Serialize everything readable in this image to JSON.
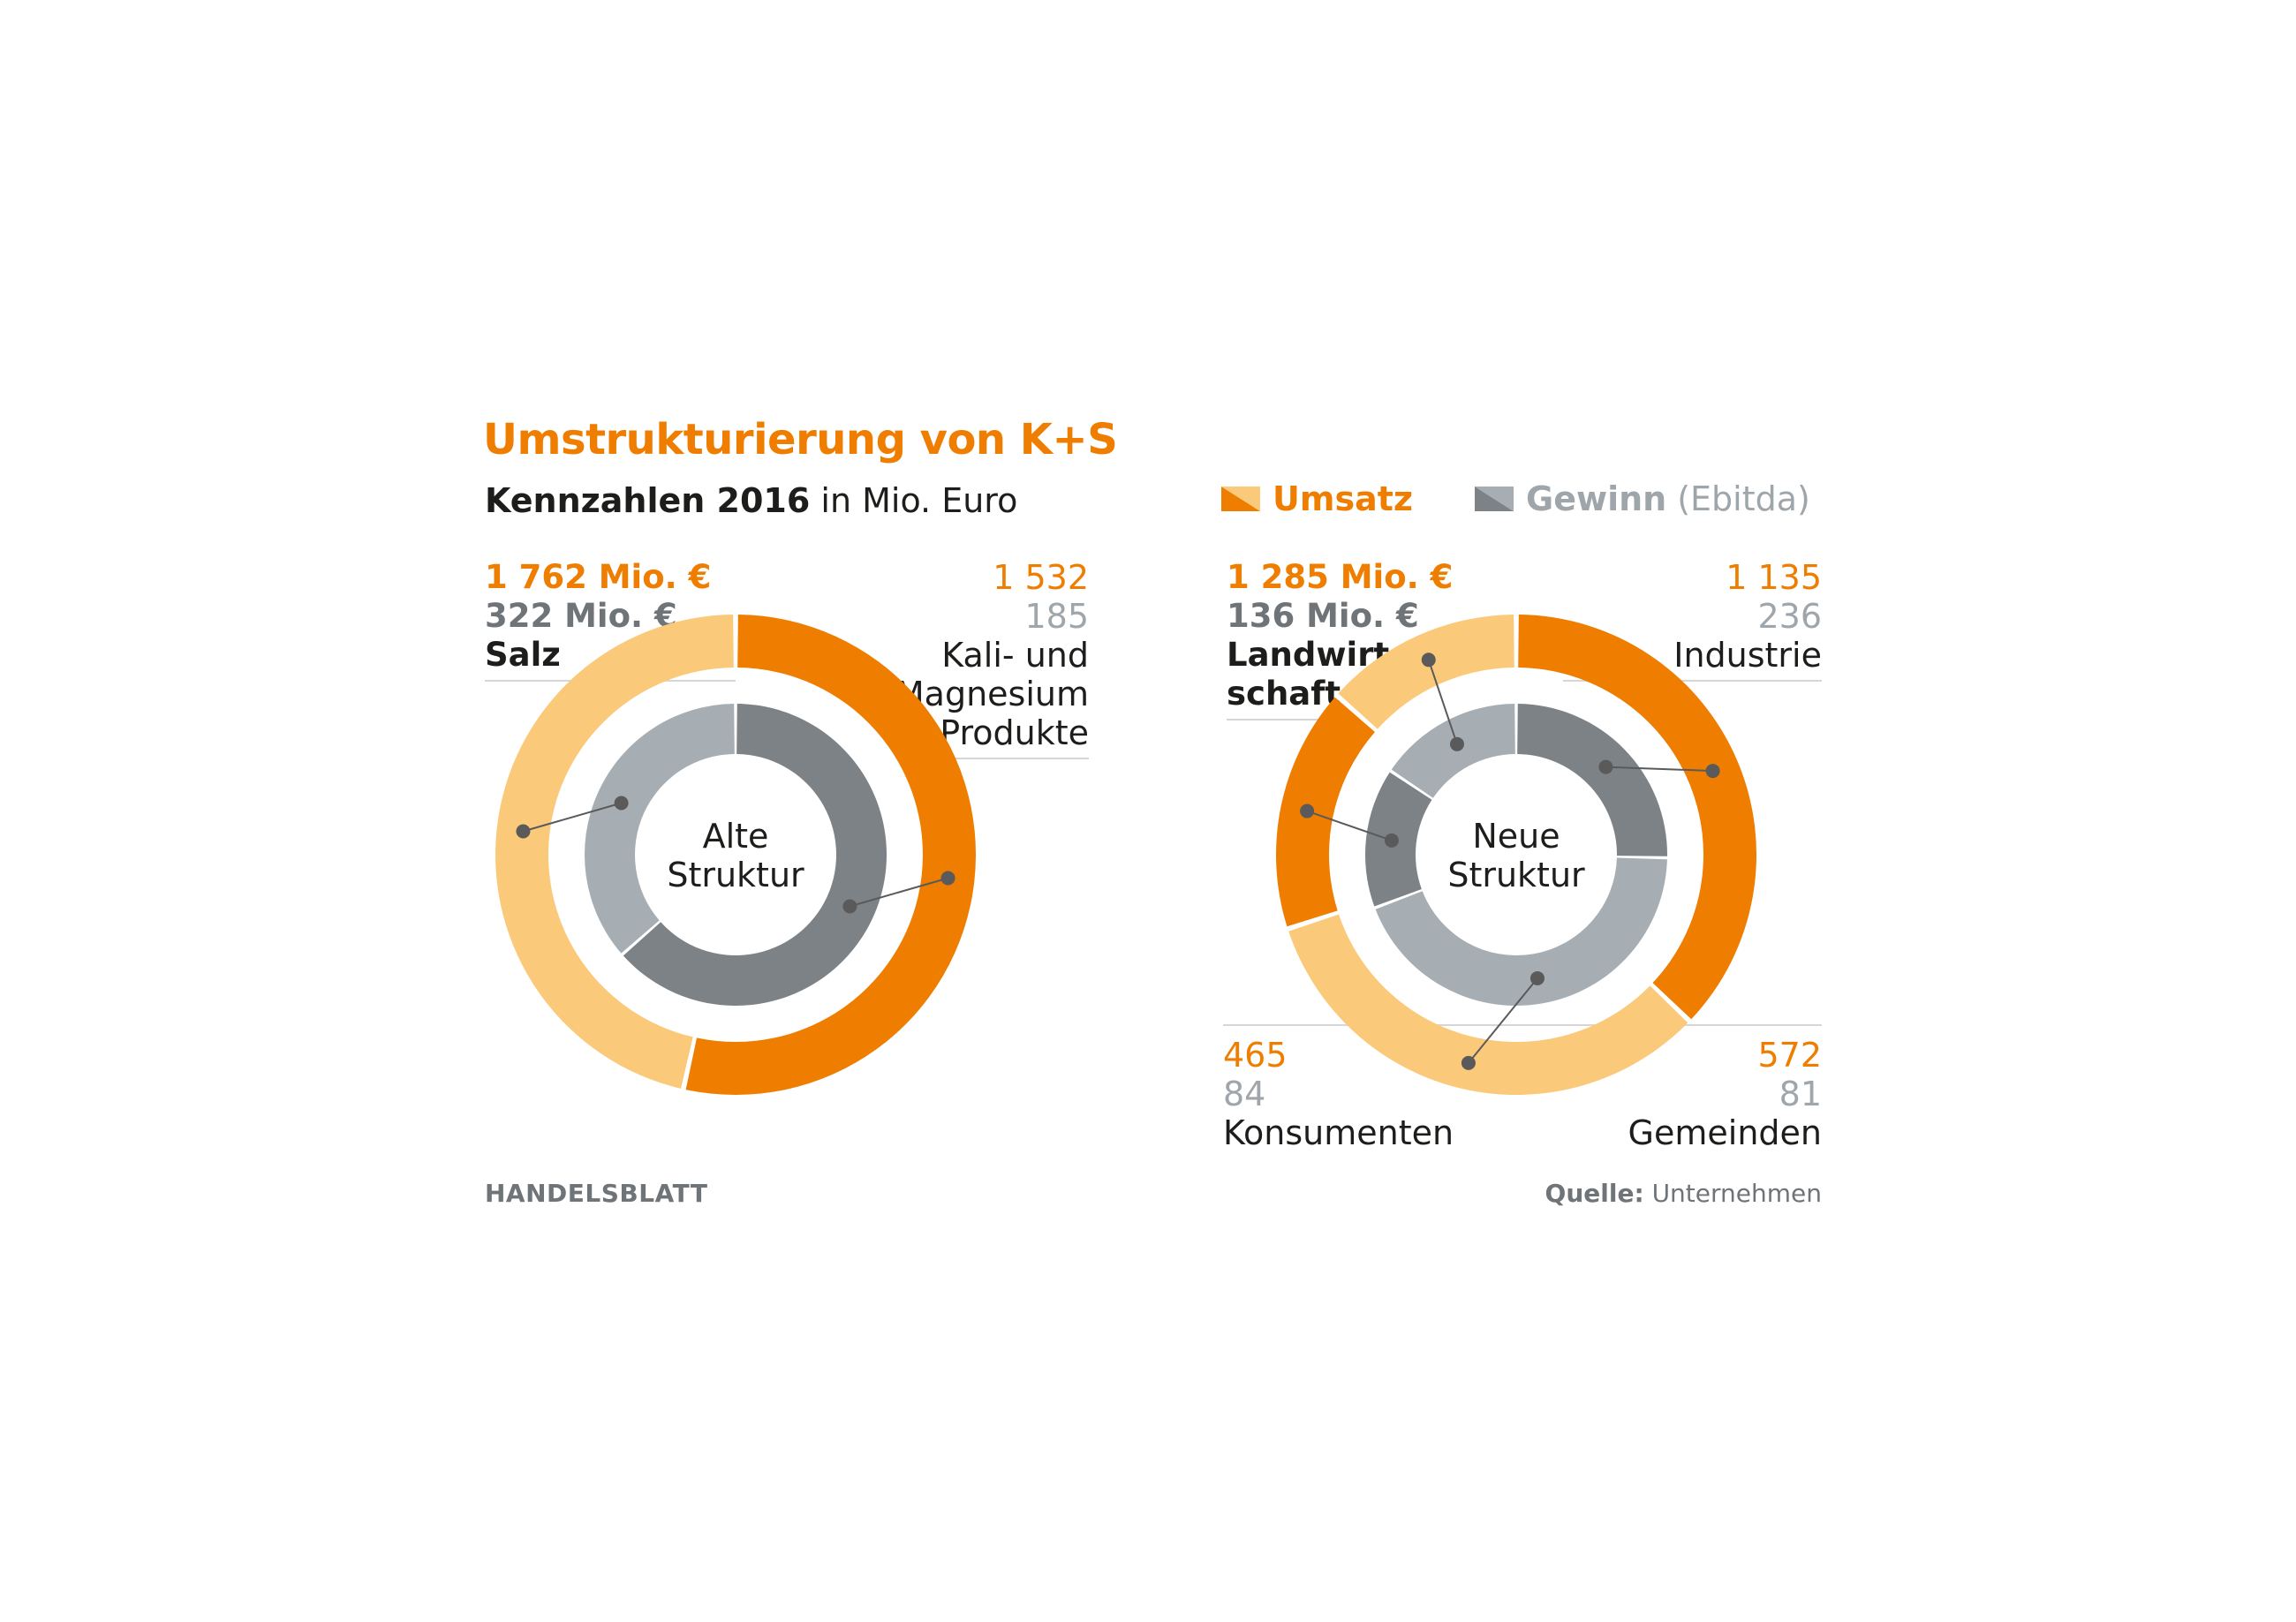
{
  "title": "Umstrukturierung von K+S",
  "subtitle": {
    "bold": "Kennzahlen 2016",
    "rest": " in Mio. Euro"
  },
  "legend": {
    "revenue": "Umsatz",
    "profit": "Gewinn",
    "profit_note": "(Ebitda)"
  },
  "colors": {
    "revenue_dark": "#ee7d00",
    "revenue_light": "#fbc97a",
    "profit_dark": "#7d8286",
    "profit_light": "#a7aeb3"
  },
  "chart_data": [
    {
      "type": "pie",
      "center_label": [
        "Alte",
        "Struktur"
      ],
      "outer_ring_metric": "Umsatz",
      "inner_ring_metric": "Gewinn (Ebitda)",
      "segments": [
        {
          "name": "Salz",
          "revenue": 1762,
          "profit": 322,
          "revenue_text": "1 762 Mio. €",
          "profit_text": "322 Mio. €"
        },
        {
          "name": "Kali- und Magnesium Produkte",
          "revenue": 1532,
          "profit": 185,
          "revenue_text": "1 532",
          "profit_text": "185"
        }
      ]
    },
    {
      "type": "pie",
      "center_label": [
        "Neue",
        "Struktur"
      ],
      "outer_ring_metric": "Umsatz",
      "inner_ring_metric": "Gewinn (Ebitda)",
      "segments": [
        {
          "name": "Landwirtschaft",
          "revenue": 1285,
          "profit": 136,
          "revenue_text": "1 285 Mio. €",
          "profit_text": "136 Mio. €"
        },
        {
          "name": "Industrie",
          "revenue": 1135,
          "profit": 236,
          "revenue_text": "1 135",
          "profit_text": "236"
        },
        {
          "name": "Gemeinden",
          "revenue": 572,
          "profit": 81,
          "revenue_text": "572",
          "profit_text": "81"
        },
        {
          "name": "Konsumenten",
          "revenue": 465,
          "profit": 84,
          "revenue_text": "465",
          "profit_text": "84"
        }
      ]
    }
  ],
  "labels": {
    "salz": {
      "revenue": "1 762 Mio. €",
      "profit": "322 Mio. €",
      "name": "Salz"
    },
    "kali": {
      "revenue": "1 532",
      "profit": "185",
      "name1": "Kali- und",
      "name2": "Magnesium",
      "name3": "Produkte"
    },
    "landwirtschaft": {
      "revenue": "1 285 Mio. €",
      "profit": "136 Mio. €",
      "name1": "Landwirt-",
      "name2": "schaft"
    },
    "industrie": {
      "revenue": "1 135",
      "profit": "236",
      "name": "Industrie"
    },
    "konsumenten": {
      "revenue": "465",
      "profit": "84",
      "name": "Konsumenten"
    },
    "gemeinden": {
      "revenue": "572",
      "profit": "81",
      "name": "Gemeinden"
    }
  },
  "footer": {
    "brand": "HANDELSBLATT",
    "source_label": "Quelle:",
    "source_value": "Unternehmen"
  }
}
